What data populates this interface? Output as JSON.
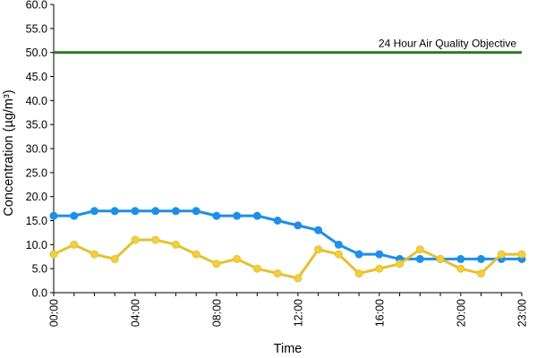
{
  "chart_data": {
    "type": "line",
    "xlabel": "Time",
    "ylabel": "Concentration (µg/m³)",
    "ylim": [
      0,
      60
    ],
    "y_ticks": [
      "0.0",
      "5.0",
      "10.0",
      "15.0",
      "20.0",
      "25.0",
      "30.0",
      "35.0",
      "40.0",
      "45.0",
      "50.0",
      "55.0",
      "60.0"
    ],
    "x_tick_labels": [
      "00:00",
      "04:00",
      "08:00",
      "12:00",
      "16:00",
      "20:00",
      "23:00"
    ],
    "x_tick_hours": [
      0,
      4,
      8,
      12,
      16,
      20,
      23
    ],
    "x": [
      0,
      1,
      2,
      3,
      4,
      5,
      6,
      7,
      8,
      9,
      10,
      11,
      12,
      13,
      14,
      15,
      16,
      17,
      18,
      19,
      20,
      21,
      22,
      23
    ],
    "grid": false,
    "legend": "none",
    "series": [
      {
        "color": "#1e8fe6",
        "marker_fill": "#1e8fe6",
        "values": [
          16,
          16,
          17,
          17,
          17,
          17,
          17,
          17,
          16,
          16,
          16,
          15,
          14,
          13,
          10,
          8,
          8,
          7,
          7,
          7,
          7,
          7,
          7,
          7
        ]
      },
      {
        "color": "#e6c02e",
        "marker_fill": "#f2cf3e",
        "values": [
          8,
          10,
          8,
          7,
          11,
          11,
          10,
          8,
          6,
          7,
          5,
          4,
          3,
          9,
          8,
          4,
          5,
          6,
          9,
          7,
          5,
          4,
          8,
          8
        ]
      }
    ],
    "reference_line": {
      "value": 50,
      "color": "#2e7d1f",
      "label": "24 Hour Air Quality Objective"
    }
  }
}
